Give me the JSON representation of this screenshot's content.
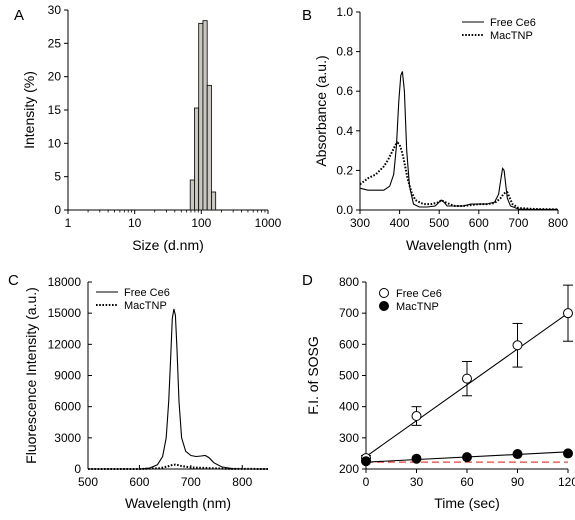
{
  "chart_data": [
    {
      "panel": "A",
      "type": "bar",
      "xlabel": "Size (d.nm)",
      "ylabel": "Intensity (%)",
      "xscale": "log",
      "xlim": [
        1,
        1000
      ],
      "ylim": [
        0,
        30
      ],
      "xticks": [
        "1",
        "10",
        "100",
        "1000"
      ],
      "yticks": [
        "0",
        "5",
        "10",
        "15",
        "20",
        "25",
        "30"
      ],
      "bar_color": "#c8c8c0",
      "bins": [
        {
          "from": 68.06,
          "to": 78.82,
          "value": 4.5
        },
        {
          "from": 78.82,
          "to": 91.28,
          "value": 15.3
        },
        {
          "from": 91.28,
          "to": 105.7,
          "value": 28.0
        },
        {
          "from": 105.7,
          "to": 122.4,
          "value": 28.4
        },
        {
          "from": 122.4,
          "to": 141.8,
          "value": 18.7
        },
        {
          "from": 141.8,
          "to": 164.2,
          "value": 2.7
        }
      ]
    },
    {
      "panel": "B",
      "type": "line",
      "xlabel": "Wavelength (nm)",
      "ylabel": "Absorbance (a.u.)",
      "xlim": [
        300,
        800
      ],
      "ylim": [
        0,
        1.0
      ],
      "xticks": [
        "300",
        "400",
        "500",
        "600",
        "700",
        "800"
      ],
      "yticks": [
        "0.0",
        "0.2",
        "0.4",
        "0.6",
        "0.8",
        "1.0"
      ],
      "legend_position": "top-right",
      "series": [
        {
          "name": "Free Ce6",
          "style": "solid",
          "x": [
            300,
            320,
            340,
            360,
            375,
            385,
            392,
            398,
            403,
            407,
            412,
            418,
            425,
            435,
            450,
            470,
            490,
            500,
            505,
            512,
            520,
            540,
            560,
            580,
            600,
            620,
            640,
            650,
            656,
            660,
            664,
            668,
            672,
            680,
            700,
            740,
            800
          ],
          "y": [
            0.11,
            0.1,
            0.1,
            0.1,
            0.12,
            0.18,
            0.32,
            0.55,
            0.68,
            0.7,
            0.6,
            0.3,
            0.12,
            0.03,
            0.015,
            0.015,
            0.02,
            0.04,
            0.05,
            0.04,
            0.02,
            0.02,
            0.02,
            0.03,
            0.03,
            0.03,
            0.04,
            0.08,
            0.16,
            0.21,
            0.2,
            0.13,
            0.06,
            0.02,
            0.005,
            0.003,
            0.003
          ]
        },
        {
          "name": "MacTNP",
          "style": "dotted",
          "x": [
            300,
            320,
            340,
            360,
            370,
            380,
            390,
            395,
            400,
            405,
            410,
            420,
            430,
            440,
            460,
            480,
            500,
            505,
            510,
            520,
            540,
            560,
            580,
            600,
            620,
            640,
            655,
            662,
            668,
            672,
            676,
            685,
            700,
            740,
            800
          ],
          "y": [
            0.13,
            0.16,
            0.18,
            0.22,
            0.25,
            0.29,
            0.33,
            0.34,
            0.33,
            0.3,
            0.26,
            0.16,
            0.09,
            0.05,
            0.03,
            0.03,
            0.04,
            0.05,
            0.045,
            0.035,
            0.02,
            0.02,
            0.025,
            0.03,
            0.03,
            0.035,
            0.06,
            0.08,
            0.09,
            0.09,
            0.07,
            0.03,
            0.01,
            0.005,
            0.003
          ]
        }
      ]
    },
    {
      "panel": "C",
      "type": "line",
      "xlabel": "Wavelength (nm)",
      "ylabel": "Fluorescence Intensity (a.u.)",
      "xlim": [
        500,
        850
      ],
      "ylim": [
        0,
        18000
      ],
      "xticks": [
        "500",
        "600",
        "700",
        "800"
      ],
      "yticks": [
        "0",
        "3000",
        "6000",
        "9000",
        "12000",
        "15000",
        "18000"
      ],
      "legend_position": "top-left",
      "series": [
        {
          "name": "Free Ce6",
          "style": "solid",
          "x": [
            500,
            600,
            620,
            635,
            645,
            652,
            657,
            661,
            664,
            667,
            670,
            673,
            677,
            682,
            690,
            700,
            710,
            720,
            728,
            735,
            745,
            760,
            780,
            800,
            850
          ],
          "y": [
            0,
            0,
            100,
            400,
            1200,
            3000,
            6500,
            11000,
            14500,
            15400,
            14800,
            11500,
            6500,
            3000,
            1700,
            1300,
            1200,
            1250,
            1300,
            1100,
            600,
            200,
            50,
            0,
            0
          ]
        },
        {
          "name": "MacTNP",
          "style": "dotted",
          "x": [
            500,
            600,
            640,
            655,
            665,
            670,
            675,
            685,
            700,
            720,
            740,
            770,
            850
          ],
          "y": [
            0,
            0,
            80,
            250,
            400,
            420,
            380,
            250,
            150,
            120,
            80,
            20,
            0
          ]
        }
      ]
    },
    {
      "panel": "D",
      "type": "scatter",
      "xlabel": "Time (sec)",
      "ylabel": "F.I. of SOSG",
      "xlim": [
        0,
        120
      ],
      "ylim": [
        200,
        800
      ],
      "xticks": [
        "0",
        "30",
        "60",
        "90",
        "120"
      ],
      "yticks": [
        "200",
        "300",
        "400",
        "500",
        "600",
        "700",
        "800"
      ],
      "legend_position": "top-left",
      "series": [
        {
          "name": "Free Ce6",
          "marker": "open-circle",
          "x": [
            0,
            30,
            60,
            90,
            120
          ],
          "y": [
            235,
            370,
            490,
            597,
            700
          ],
          "err": [
            8,
            30,
            55,
            70,
            90
          ],
          "fit": [
            [
              0,
              240
            ],
            [
              120,
              700
            ]
          ]
        },
        {
          "name": "MacTNP",
          "marker": "filled-circle",
          "x": [
            0,
            30,
            60,
            90,
            120
          ],
          "y": [
            225,
            233,
            238,
            248,
            250
          ],
          "err": [
            0,
            0,
            0,
            0,
            0
          ],
          "fit": [
            [
              0,
              222
            ],
            [
              120,
              255
            ]
          ]
        }
      ],
      "reference_line": {
        "y": 222,
        "color": "#e8433a",
        "style": "dashed"
      }
    }
  ]
}
